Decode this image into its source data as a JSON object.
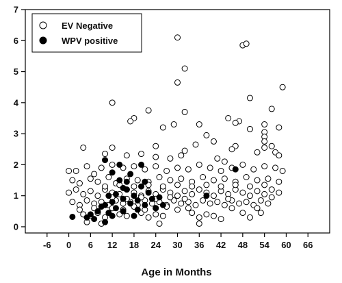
{
  "chart_data": {
    "type": "scatter",
    "xlabel": "Age in Months",
    "ylabel": "",
    "xlim": [
      -12,
      72
    ],
    "ylim": [
      -0.2,
      7
    ],
    "x_ticks": [
      -6,
      0,
      6,
      12,
      18,
      24,
      30,
      36,
      42,
      48,
      54,
      60,
      66
    ],
    "y_ticks": [
      0,
      1,
      2,
      3,
      4,
      5,
      6,
      7
    ],
    "grid": false,
    "legend_position": "top-left",
    "series": [
      {
        "name": "EV Negative",
        "marker": "open-circle",
        "color": "#000000",
        "points": [
          [
            30,
            6.1
          ],
          [
            48,
            5.85
          ],
          [
            49,
            5.9
          ],
          [
            32,
            5.1
          ],
          [
            30,
            4.65
          ],
          [
            59,
            4.5
          ],
          [
            50,
            4.15
          ],
          [
            12,
            4.0
          ],
          [
            56,
            3.8
          ],
          [
            22,
            3.75
          ],
          [
            32,
            3.7
          ],
          [
            44,
            3.5
          ],
          [
            47,
            3.4
          ],
          [
            18,
            3.5
          ],
          [
            17,
            3.4
          ],
          [
            36,
            3.3
          ],
          [
            46,
            3.35
          ],
          [
            54,
            3.3
          ],
          [
            29,
            3.3
          ],
          [
            26,
            3.2
          ],
          [
            50,
            3.15
          ],
          [
            58,
            3.2
          ],
          [
            54,
            3.05
          ],
          [
            38,
            2.95
          ],
          [
            54,
            2.9
          ],
          [
            54,
            2.75
          ],
          [
            56,
            2.6
          ],
          [
            54,
            2.55
          ],
          [
            46,
            2.6
          ],
          [
            40,
            2.75
          ],
          [
            24,
            2.6
          ],
          [
            35,
            2.65
          ],
          [
            45,
            2.5
          ],
          [
            32,
            2.45
          ],
          [
            4,
            2.55
          ],
          [
            12,
            2.55
          ],
          [
            31,
            2.3
          ],
          [
            41,
            2.2
          ],
          [
            43,
            2.1
          ],
          [
            52,
            2.4
          ],
          [
            57,
            2.4
          ],
          [
            58,
            2.3
          ],
          [
            28,
            2.2
          ],
          [
            20,
            2.35
          ],
          [
            24,
            2.25
          ],
          [
            10,
            2.35
          ],
          [
            16,
            2.3
          ],
          [
            0,
            1.8
          ],
          [
            2,
            1.8
          ],
          [
            5,
            1.95
          ],
          [
            7,
            1.7
          ],
          [
            9,
            1.9
          ],
          [
            12,
            2.0
          ],
          [
            15,
            1.9
          ],
          [
            18,
            1.95
          ],
          [
            21,
            1.85
          ],
          [
            24,
            1.95
          ],
          [
            27,
            1.8
          ],
          [
            30,
            1.9
          ],
          [
            33,
            1.85
          ],
          [
            36,
            2.0
          ],
          [
            39,
            1.9
          ],
          [
            42,
            1.8
          ],
          [
            45,
            1.9
          ],
          [
            48,
            2.0
          ],
          [
            51,
            1.85
          ],
          [
            54,
            1.95
          ],
          [
            57,
            1.9
          ],
          [
            59,
            1.8
          ],
          [
            1,
            1.5
          ],
          [
            3,
            1.4
          ],
          [
            6,
            1.55
          ],
          [
            8,
            1.45
          ],
          [
            11,
            1.6
          ],
          [
            13,
            1.4
          ],
          [
            16,
            1.55
          ],
          [
            19,
            1.5
          ],
          [
            22,
            1.45
          ],
          [
            25,
            1.6
          ],
          [
            28,
            1.5
          ],
          [
            31,
            1.55
          ],
          [
            34,
            1.45
          ],
          [
            37,
            1.6
          ],
          [
            40,
            1.5
          ],
          [
            43,
            1.55
          ],
          [
            46,
            1.45
          ],
          [
            49,
            1.6
          ],
          [
            52,
            1.5
          ],
          [
            55,
            1.55
          ],
          [
            58,
            1.45
          ],
          [
            0,
            1.1
          ],
          [
            2,
            1.2
          ],
          [
            4,
            1.05
          ],
          [
            6,
            1.15
          ],
          [
            8,
            1.0
          ],
          [
            10,
            1.2
          ],
          [
            12,
            1.1
          ],
          [
            14,
            1.05
          ],
          [
            16,
            1.2
          ],
          [
            18,
            1.1
          ],
          [
            20,
            1.0
          ],
          [
            22,
            1.15
          ],
          [
            24,
            1.05
          ],
          [
            26,
            1.2
          ],
          [
            28,
            1.1
          ],
          [
            30,
            1.0
          ],
          [
            32,
            1.15
          ],
          [
            34,
            1.05
          ],
          [
            36,
            1.2
          ],
          [
            38,
            1.1
          ],
          [
            40,
            1.0
          ],
          [
            42,
            1.15
          ],
          [
            44,
            1.05
          ],
          [
            46,
            1.2
          ],
          [
            48,
            1.1
          ],
          [
            50,
            1.0
          ],
          [
            52,
            1.15
          ],
          [
            54,
            1.05
          ],
          [
            56,
            1.2
          ],
          [
            58,
            1.1
          ],
          [
            1,
            0.8
          ],
          [
            3,
            0.7
          ],
          [
            5,
            0.85
          ],
          [
            7,
            0.75
          ],
          [
            9,
            0.8
          ],
          [
            11,
            0.7
          ],
          [
            13,
            0.85
          ],
          [
            15,
            0.75
          ],
          [
            17,
            0.8
          ],
          [
            19,
            0.7
          ],
          [
            21,
            0.85
          ],
          [
            23,
            0.75
          ],
          [
            25,
            0.8
          ],
          [
            27,
            0.7
          ],
          [
            29,
            0.85
          ],
          [
            31,
            0.75
          ],
          [
            33,
            0.8
          ],
          [
            35,
            0.7
          ],
          [
            37,
            0.85
          ],
          [
            39,
            0.75
          ],
          [
            41,
            0.8
          ],
          [
            43,
            0.7
          ],
          [
            45,
            0.85
          ],
          [
            47,
            0.75
          ],
          [
            49,
            0.8
          ],
          [
            51,
            0.7
          ],
          [
            53,
            0.85
          ],
          [
            55,
            0.75
          ],
          [
            4,
            0.4
          ],
          [
            6,
            0.35
          ],
          [
            8,
            0.45
          ],
          [
            10,
            0.3
          ],
          [
            14,
            0.4
          ],
          [
            16,
            0.35
          ],
          [
            20,
            0.45
          ],
          [
            22,
            0.3
          ],
          [
            24,
            0.4
          ],
          [
            26,
            0.35
          ],
          [
            34,
            0.45
          ],
          [
            36,
            0.3
          ],
          [
            38,
            0.4
          ],
          [
            40,
            0.35
          ],
          [
            48,
            0.45
          ],
          [
            50,
            0.3
          ],
          [
            5,
            0.15
          ],
          [
            9,
            0.1
          ],
          [
            25,
            0.1
          ],
          [
            36,
            0.1
          ],
          [
            42,
            0.25
          ],
          [
            53,
            0.45
          ],
          [
            3,
            0.55
          ],
          [
            7,
            0.6
          ],
          [
            12,
            0.6
          ],
          [
            15,
            0.55
          ],
          [
            18,
            0.65
          ],
          [
            21,
            0.55
          ],
          [
            24,
            0.6
          ],
          [
            27,
            0.65
          ],
          [
            30,
            0.55
          ],
          [
            33,
            0.6
          ],
          [
            45,
            0.6
          ],
          [
            52,
            0.6
          ],
          [
            10,
            1.3
          ],
          [
            14,
            1.35
          ],
          [
            18,
            1.3
          ],
          [
            22,
            1.35
          ],
          [
            26,
            1.3
          ],
          [
            30,
            1.35
          ],
          [
            34,
            1.3
          ],
          [
            38,
            1.35
          ],
          [
            42,
            1.3
          ],
          [
            46,
            1.35
          ],
          [
            50,
            1.3
          ],
          [
            54,
            1.35
          ],
          [
            12,
            0.95
          ],
          [
            16,
            0.9
          ],
          [
            20,
            0.95
          ],
          [
            24,
            0.9
          ],
          [
            28,
            0.95
          ],
          [
            32,
            0.9
          ],
          [
            44,
            0.9
          ],
          [
            56,
            0.95
          ]
        ]
      },
      {
        "name": "WPV positive",
        "marker": "filled-circle",
        "color": "#000000",
        "points": [
          [
            1,
            0.32
          ],
          [
            5,
            0.3
          ],
          [
            6,
            0.4
          ],
          [
            7,
            0.25
          ],
          [
            8,
            0.5
          ],
          [
            9,
            0.65
          ],
          [
            10,
            0.15
          ],
          [
            10,
            0.7
          ],
          [
            11,
            0.45
          ],
          [
            12,
            0.8
          ],
          [
            12,
            1.75
          ],
          [
            13,
            0.6
          ],
          [
            13,
            1.05
          ],
          [
            14,
            2.0
          ],
          [
            15,
            0.9
          ],
          [
            15,
            0.5
          ],
          [
            16,
            1.2
          ],
          [
            16,
            1.45
          ],
          [
            17,
            0.75
          ],
          [
            17,
            1.7
          ],
          [
            18,
            1.0
          ],
          [
            18,
            0.35
          ],
          [
            19,
            0.85
          ],
          [
            20,
            2.0
          ],
          [
            20,
            1.3
          ],
          [
            21,
            0.7
          ],
          [
            22,
            1.1
          ],
          [
            23,
            0.9
          ],
          [
            24,
            0.6
          ],
          [
            25,
            0.95
          ],
          [
            26,
            0.7
          ],
          [
            10,
            2.15
          ],
          [
            14,
            1.5
          ],
          [
            11,
            1.0
          ],
          [
            19,
            0.55
          ],
          [
            38,
            1.0
          ],
          [
            46,
            1.85
          ],
          [
            21,
            1.45
          ],
          [
            15,
            1.25
          ],
          [
            12,
            0.35
          ]
        ]
      }
    ]
  }
}
